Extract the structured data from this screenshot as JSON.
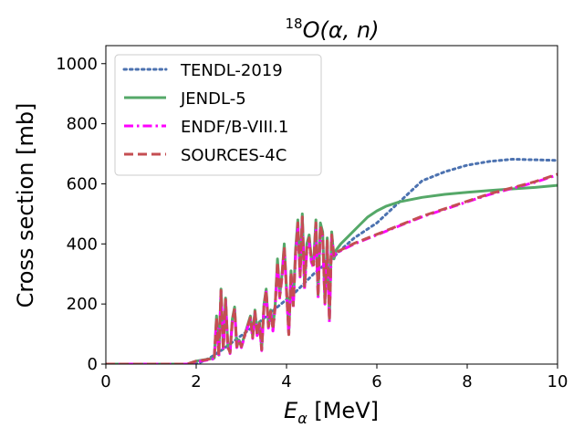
{
  "chart_data": {
    "type": "line",
    "title": {
      "superscript": "18",
      "text": "O(α, n)"
    },
    "xlabel": {
      "symbol": "E",
      "subscript": "α",
      "unit": " [MeV]"
    },
    "ylabel": "Cross section [mb]",
    "xlim": [
      0,
      10
    ],
    "ylim": [
      0,
      1060
    ],
    "xticks": [
      "0",
      "2",
      "4",
      "6",
      "8",
      "10"
    ],
    "yticks": [
      "0",
      "200",
      "400",
      "600",
      "800",
      "1000"
    ],
    "grid": false,
    "legend_position": "upper left",
    "series": [
      {
        "name": "TENDL-2019",
        "color": "#4c72b0",
        "style": "dotted",
        "x": [
          0,
          2.0,
          2.3,
          2.6,
          3.0,
          3.4,
          3.8,
          4.2,
          4.6,
          5.0,
          5.2,
          5.5,
          6.0,
          6.5,
          7.0,
          7.5,
          8.0,
          8.5,
          9.0,
          9.5,
          10.0
        ],
        "y": [
          0,
          0,
          20,
          50,
          95,
          140,
          190,
          240,
          300,
          350,
          380,
          420,
          470,
          540,
          610,
          640,
          662,
          675,
          682,
          680,
          678
        ]
      },
      {
        "name": "JENDL-5",
        "color": "#55a868",
        "style": "solid",
        "x": [
          0,
          1.0,
          1.8,
          2.0,
          2.2,
          2.4,
          2.45,
          2.5,
          2.55,
          2.6,
          2.65,
          2.7,
          2.75,
          2.8,
          2.85,
          2.9,
          2.95,
          3.0,
          3.1,
          3.2,
          3.25,
          3.3,
          3.35,
          3.4,
          3.45,
          3.5,
          3.55,
          3.6,
          3.65,
          3.7,
          3.75,
          3.8,
          3.85,
          3.9,
          3.95,
          4.0,
          4.05,
          4.1,
          4.15,
          4.2,
          4.25,
          4.3,
          4.35,
          4.4,
          4.45,
          4.5,
          4.55,
          4.6,
          4.65,
          4.7,
          4.75,
          4.8,
          4.85,
          4.9,
          4.95,
          5.0,
          5.05,
          5.1,
          5.2,
          5.4,
          5.6,
          5.8,
          6.0,
          6.2,
          6.5,
          7.0,
          7.5,
          8.0,
          8.5,
          9.0,
          9.5,
          10.0
        ],
        "y": [
          0,
          0,
          0,
          10,
          15,
          20,
          160,
          30,
          250,
          50,
          220,
          60,
          40,
          150,
          190,
          60,
          80,
          60,
          110,
          160,
          90,
          180,
          100,
          140,
          50,
          200,
          250,
          130,
          180,
          120,
          200,
          350,
          230,
          300,
          400,
          250,
          100,
          310,
          200,
          380,
          480,
          300,
          500,
          260,
          400,
          430,
          350,
          340,
          480,
          230,
          470,
          440,
          210,
          420,
          150,
          440,
          350,
          380,
          400,
          430,
          460,
          490,
          510,
          525,
          540,
          555,
          565,
          572,
          578,
          583,
          588,
          595
        ]
      },
      {
        "name": "ENDF/B-VIII.1",
        "color": "#ff00ff",
        "style": "dashdot",
        "x": [
          0,
          1.0,
          1.8,
          2.0,
          2.2,
          2.4,
          2.45,
          2.5,
          2.55,
          2.6,
          2.65,
          2.7,
          2.75,
          2.8,
          2.85,
          2.9,
          2.95,
          3.0,
          3.1,
          3.2,
          3.25,
          3.3,
          3.35,
          3.4,
          3.45,
          3.5,
          3.55,
          3.6,
          3.65,
          3.7,
          3.75,
          3.8,
          3.85,
          3.9,
          3.95,
          4.0,
          4.05,
          4.1,
          4.15,
          4.2,
          4.25,
          4.3,
          4.35,
          4.4,
          4.45,
          4.5,
          4.55,
          4.6,
          4.65,
          4.7,
          4.75,
          4.8,
          4.85,
          4.9,
          4.95,
          5.0,
          5.05,
          5.1,
          5.5,
          6.0,
          6.5,
          7.0,
          7.5,
          8.0,
          8.5,
          9.0,
          9.5,
          10.0
        ],
        "y": [
          0,
          0,
          0,
          8,
          12,
          18,
          150,
          25,
          240,
          45,
          210,
          55,
          35,
          140,
          180,
          55,
          75,
          55,
          105,
          150,
          85,
          170,
          95,
          130,
          45,
          190,
          240,
          120,
          170,
          110,
          190,
          330,
          220,
          290,
          380,
          240,
          95,
          300,
          190,
          360,
          460,
          290,
          480,
          250,
          380,
          410,
          340,
          320,
          460,
          220,
          450,
          420,
          200,
          400,
          140,
          420,
          360,
          370,
          400,
          430,
          460,
          490,
          515,
          540,
          565,
          585,
          605,
          630
        ]
      },
      {
        "name": "SOURCES-4C",
        "color": "#c44e52",
        "style": "dashed",
        "x": [
          0,
          1.0,
          1.8,
          2.0,
          2.2,
          2.4,
          2.45,
          2.5,
          2.55,
          2.6,
          2.65,
          2.7,
          2.75,
          2.8,
          2.85,
          2.9,
          2.95,
          3.0,
          3.1,
          3.2,
          3.25,
          3.3,
          3.35,
          3.4,
          3.45,
          3.5,
          3.55,
          3.6,
          3.65,
          3.7,
          3.75,
          3.8,
          3.85,
          3.9,
          3.95,
          4.0,
          4.05,
          4.1,
          4.15,
          4.2,
          4.25,
          4.3,
          4.35,
          4.4,
          4.45,
          4.5,
          4.55,
          4.6,
          4.65,
          4.7,
          4.75,
          4.8,
          4.85,
          4.9,
          4.95,
          5.0,
          5.05,
          5.1,
          5.5,
          6.0,
          6.5,
          7.0,
          7.5,
          8.0,
          8.5,
          9.0,
          9.5,
          10.0
        ],
        "y": [
          0,
          0,
          0,
          10,
          14,
          20,
          155,
          28,
          245,
          48,
          215,
          58,
          38,
          145,
          185,
          58,
          78,
          58,
          108,
          155,
          88,
          175,
          98,
          135,
          48,
          195,
          245,
          125,
          175,
          115,
          195,
          340,
          225,
          295,
          390,
          245,
          98,
          305,
          195,
          370,
          470,
          295,
          490,
          255,
          390,
          420,
          345,
          330,
          470,
          225,
          460,
          430,
          205,
          410,
          145,
          430,
          362,
          372,
          402,
          432,
          462,
          492,
          517,
          542,
          567,
          587,
          607,
          632
        ]
      }
    ]
  }
}
